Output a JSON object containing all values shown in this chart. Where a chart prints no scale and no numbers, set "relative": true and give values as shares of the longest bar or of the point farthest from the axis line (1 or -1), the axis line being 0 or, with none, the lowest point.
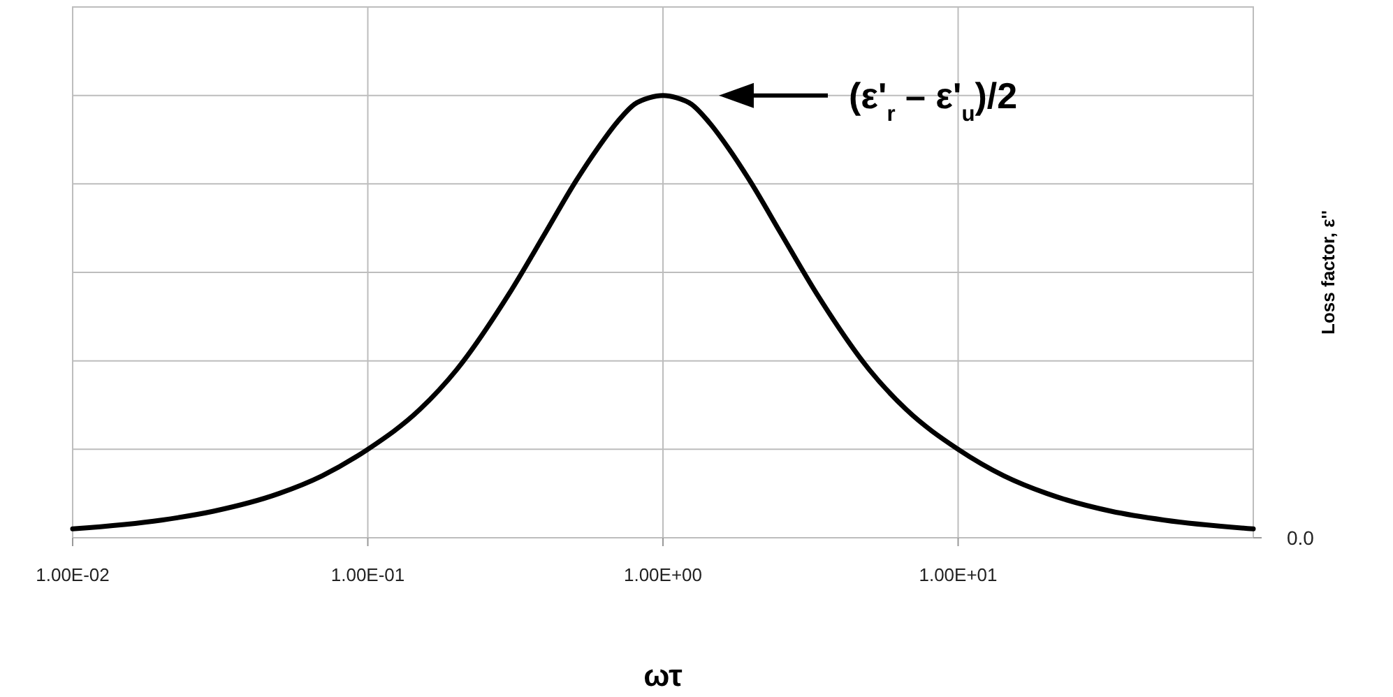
{
  "chart_data": {
    "type": "line",
    "relative": true,
    "xlabel": "ωτ",
    "ylabel": "Loss factor, ε''",
    "log": "x",
    "x": [
      0.01,
      0.02,
      0.03,
      0.05,
      0.07,
      0.1,
      0.15,
      0.2,
      0.3,
      0.4,
      0.5,
      0.6,
      0.7,
      0.8,
      0.9,
      1,
      1.11,
      1.25,
      1.43,
      1.67,
      2,
      2.5,
      3.33,
      5,
      6.67,
      10,
      14.3,
      20,
      33,
      50,
      100
    ],
    "series": [
      {
        "color": "#000000",
        "values": [
          0.02,
          0.04,
          0.06,
          0.1,
          0.14,
          0.2,
          0.29,
          0.38,
          0.55,
          0.69,
          0.8,
          0.88,
          0.94,
          0.98,
          0.995,
          1,
          0.995,
          0.98,
          0.94,
          0.88,
          0.8,
          0.69,
          0.55,
          0.38,
          0.29,
          0.2,
          0.14,
          0.1,
          0.06,
          0.04,
          0.02
        ]
      }
    ],
    "xlim": [
      0.01,
      100
    ],
    "xticks": [
      {
        "value": 0.01,
        "label": "1.00E-02"
      },
      {
        "value": 0.1,
        "label": "1.00E-01"
      },
      {
        "value": 1,
        "label": "1.00E+00"
      },
      {
        "value": 10,
        "label": "1.00E+01"
      }
    ],
    "grid": true,
    "marker": "none",
    "line_style": "solid",
    "annotations": [
      "(ε'$_{r}$ – ε'$_{u}$)/2",
      "0.0"
    ]
  }
}
